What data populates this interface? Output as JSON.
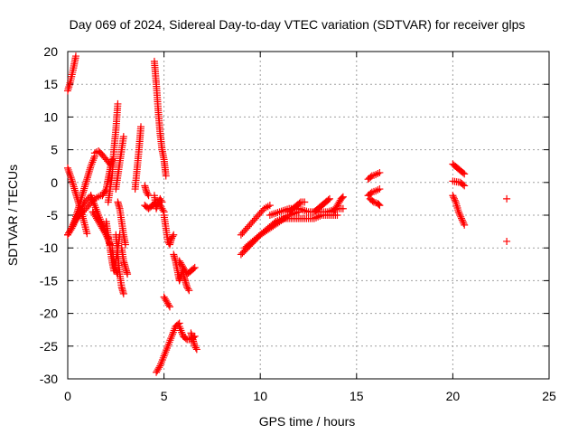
{
  "chart_data": {
    "type": "scatter",
    "title": "Day 069 of 2024, Sidereal Day-to-day VTEC variation (SDTVAR) for receiver glps",
    "xlabel": "GPS time / hours",
    "ylabel": "SDTVAR / TECUs",
    "xlim": [
      0,
      25
    ],
    "ylim": [
      -30,
      20
    ],
    "xticks": [
      0,
      5,
      10,
      15,
      20,
      25
    ],
    "yticks": [
      -30,
      -25,
      -20,
      -15,
      -10,
      -5,
      0,
      5,
      10,
      15,
      20
    ],
    "xtick_labels": [
      "0",
      "5",
      "10",
      "15",
      "20",
      "25"
    ],
    "ytick_labels": [
      "-30",
      "-25",
      "-20",
      "-15",
      "-10",
      "-5",
      "0",
      "5",
      "10",
      "15",
      "20"
    ],
    "grid": true,
    "marker": "+",
    "color": "#ff0000",
    "tracks": [
      {
        "x": [
          0,
          0.15,
          0.3,
          0.42
        ],
        "y": [
          14,
          15.5,
          17.5,
          19.3
        ]
      },
      {
        "x": [
          0,
          0.2,
          0.4,
          0.6,
          0.8,
          1.0
        ],
        "y": [
          2.2,
          0.5,
          -1.5,
          -3.5,
          -5.5,
          -7.8
        ]
      },
      {
        "x": [
          0,
          0.2,
          0.4,
          0.6,
          0.8,
          1.0,
          1.2,
          1.4
        ],
        "y": [
          -8,
          -7,
          -5.5,
          -3.5,
          -1.5,
          0.5,
          2.5,
          4.0
        ]
      },
      {
        "x": [
          1.4,
          1.6,
          1.8,
          2.0,
          2.2
        ],
        "y": [
          4.5,
          4.8,
          4.2,
          3.5,
          2.8
        ]
      },
      {
        "x": [
          0,
          0.3,
          0.6,
          0.9,
          1.2
        ],
        "y": [
          -8,
          -6.5,
          -4.5,
          -3,
          -2
        ]
      },
      {
        "x": [
          0.5,
          0.8,
          1.1,
          1.4,
          1.7
        ],
        "y": [
          -5.5,
          -4.5,
          -3.5,
          -2.5,
          -2
        ]
      },
      {
        "x": [
          1.2,
          1.4,
          1.6,
          1.8,
          2.0,
          2.2
        ],
        "y": [
          -2,
          -3.5,
          -5,
          -6.5,
          -8,
          -9.5
        ]
      },
      {
        "x": [
          1.3,
          1.5,
          1.7,
          1.9,
          2.1
        ],
        "y": [
          -4.5,
          -5.5,
          -6.5,
          -7.5,
          -8.5
        ]
      },
      {
        "x": [
          1.8,
          2.0,
          2.1,
          2.2,
          2.3
        ],
        "y": [
          -2,
          -1,
          0.5,
          2,
          3.5
        ]
      },
      {
        "x": [
          2.1,
          2.2,
          2.3,
          2.35,
          2.4,
          2.5,
          2.6
        ],
        "y": [
          -3,
          -1,
          1,
          3,
          5,
          8,
          12
        ]
      },
      {
        "x": [
          2.0,
          2.1,
          2.2,
          2.3,
          2.4,
          2.5,
          2.6,
          2.7
        ],
        "y": [
          -6,
          -8,
          -10,
          -12,
          -13.5,
          -12,
          -10,
          -8
        ]
      },
      {
        "x": [
          2.3,
          2.4,
          2.5,
          2.6
        ],
        "y": [
          -10,
          -12,
          -13.5,
          -14
        ]
      },
      {
        "x": [
          2.5,
          2.6,
          2.7,
          2.8,
          2.9
        ],
        "y": [
          -8,
          -11,
          -14,
          -16,
          -17
        ]
      },
      {
        "x": [
          2.5,
          2.6,
          2.7,
          2.8,
          2.9
        ],
        "y": [
          -1,
          1,
          3,
          5,
          7
        ]
      },
      {
        "x": [
          2.6,
          2.7,
          2.8,
          2.9,
          3.0
        ],
        "y": [
          -3,
          -4,
          -6,
          -8,
          -9.5
        ]
      },
      {
        "x": [
          2.8,
          2.9,
          3.0,
          3.1
        ],
        "y": [
          -10,
          -12,
          -13,
          -14
        ]
      },
      {
        "x": [
          3.5,
          3.6,
          3.7,
          3.8
        ],
        "y": [
          -1,
          2,
          5,
          8.5
        ]
      },
      {
        "x": [
          4.0,
          4.1,
          4.2
        ],
        "y": [
          -0.5,
          -1.5,
          -2
        ]
      },
      {
        "x": [
          4.0,
          4.2,
          4.4,
          4.6,
          4.8,
          5.0
        ],
        "y": [
          -3.5,
          -4,
          -3.5,
          -3,
          -3.5,
          -4.5
        ]
      },
      {
        "x": [
          4.5,
          4.6,
          4.7,
          4.8,
          4.9,
          5.0,
          5.1
        ],
        "y": [
          18.5,
          15,
          11,
          7.5,
          5,
          3.5,
          1
        ]
      },
      {
        "x": [
          4.5,
          4.6,
          4.7,
          4.8,
          4.9
        ],
        "y": [
          -2,
          -4,
          -3,
          -2.5,
          -3
        ]
      },
      {
        "x": [
          5.0,
          5.1,
          5.2,
          5.3,
          5.4,
          5.5
        ],
        "y": [
          -5,
          -7,
          -9,
          -9.5,
          -8.5,
          -8
        ]
      },
      {
        "x": [
          5.5,
          5.6,
          5.7,
          5.8,
          5.9,
          6.0
        ],
        "y": [
          -11,
          -12,
          -13.5,
          -15,
          -14,
          -13
        ]
      },
      {
        "x": [
          5.8,
          6.0,
          6.2,
          6.4,
          6.6
        ],
        "y": [
          -12,
          -13,
          -14,
          -13.5,
          -13
        ]
      },
      {
        "x": [
          6.0,
          6.1,
          6.2,
          6.3
        ],
        "y": [
          -14,
          -15,
          -16,
          -16.5
        ]
      },
      {
        "x": [
          5.0,
          5.1,
          5.2,
          5.3
        ],
        "y": [
          -17.5,
          -18,
          -18.5,
          -19
        ]
      },
      {
        "x": [
          4.6,
          4.8,
          5.0,
          5.2,
          5.4,
          5.6,
          5.8
        ],
        "y": [
          -29,
          -28,
          -26.5,
          -25,
          -23.5,
          -22,
          -21.5
        ]
      },
      {
        "x": [
          5.8,
          6.0,
          6.2,
          6.4,
          6.6
        ],
        "y": [
          -22,
          -23.5,
          -24,
          -24,
          -23.5
        ]
      },
      {
        "x": [
          6.4,
          6.5,
          6.6,
          6.7
        ],
        "y": [
          -23,
          -24,
          -25,
          -25.5
        ]
      },
      {
        "x": [
          9.0,
          9.5,
          10.0,
          10.5,
          11.0,
          11.5,
          12.0
        ],
        "y": [
          -11,
          -9.5,
          -8,
          -7,
          -6,
          -5,
          -4.5
        ]
      },
      {
        "x": [
          9.0,
          9.3,
          9.6,
          9.9,
          10.2,
          10.5
        ],
        "y": [
          -8,
          -7,
          -6,
          -5,
          -4,
          -3.5
        ]
      },
      {
        "x": [
          9.2,
          9.6,
          10.0,
          10.4,
          10.8,
          11.2
        ],
        "y": [
          -10,
          -9,
          -8,
          -7,
          -6,
          -5.5
        ]
      },
      {
        "x": [
          10.5,
          11.0,
          11.5,
          12.0,
          12.5,
          13.0,
          13.5,
          14.0,
          14.3
        ],
        "y": [
          -5,
          -4.5,
          -4,
          -4,
          -4.5,
          -4.5,
          -4.5,
          -4,
          -4
        ]
      },
      {
        "x": [
          10.8,
          11.2,
          11.6,
          12.0,
          12.4,
          12.8,
          13.2,
          13.6,
          14.0
        ],
        "y": [
          -6,
          -5.5,
          -5.5,
          -5.5,
          -5.5,
          -5.5,
          -5,
          -5,
          -5
        ]
      },
      {
        "x": [
          11.5,
          11.7,
          11.9,
          12.1,
          12.3
        ],
        "y": [
          -4.5,
          -4,
          -3.5,
          -3,
          -3
        ]
      },
      {
        "x": [
          12.8,
          13.0,
          13.2,
          13.4,
          13.6
        ],
        "y": [
          -4.5,
          -4,
          -3.5,
          -3,
          -2.5
        ]
      },
      {
        "x": [
          13.8,
          14.0,
          14.1,
          14.2,
          14.3
        ],
        "y": [
          -4.5,
          -3.5,
          -3,
          -2.5,
          -2.2
        ]
      },
      {
        "x": [
          15.6,
          15.8,
          16.0,
          16.2
        ],
        "y": [
          0.5,
          1,
          1.2,
          1.5
        ]
      },
      {
        "x": [
          15.6,
          15.8,
          16.0,
          16.2
        ],
        "y": [
          -2,
          -1.5,
          -1.3,
          -1
        ]
      },
      {
        "x": [
          15.7,
          15.9,
          16.1,
          16.2
        ],
        "y": [
          -2.5,
          -3,
          -3.2,
          -3.5
        ]
      },
      {
        "x": [
          20.0,
          20.2,
          20.4,
          20.6
        ],
        "y": [
          2.8,
          2.3,
          1.8,
          1.3
        ]
      },
      {
        "x": [
          20.0,
          20.2,
          20.4,
          20.6
        ],
        "y": [
          0.2,
          0.1,
          0,
          -0.5
        ]
      },
      {
        "x": [
          20.0,
          20.15,
          20.3,
          20.45,
          20.6
        ],
        "y": [
          -2,
          -3,
          -4.5,
          -5.5,
          -6.5
        ]
      },
      {
        "x": [
          22.8
        ],
        "y": [
          -2.5
        ]
      },
      {
        "x": [
          22.8
        ],
        "y": [
          -9
        ]
      }
    ]
  }
}
